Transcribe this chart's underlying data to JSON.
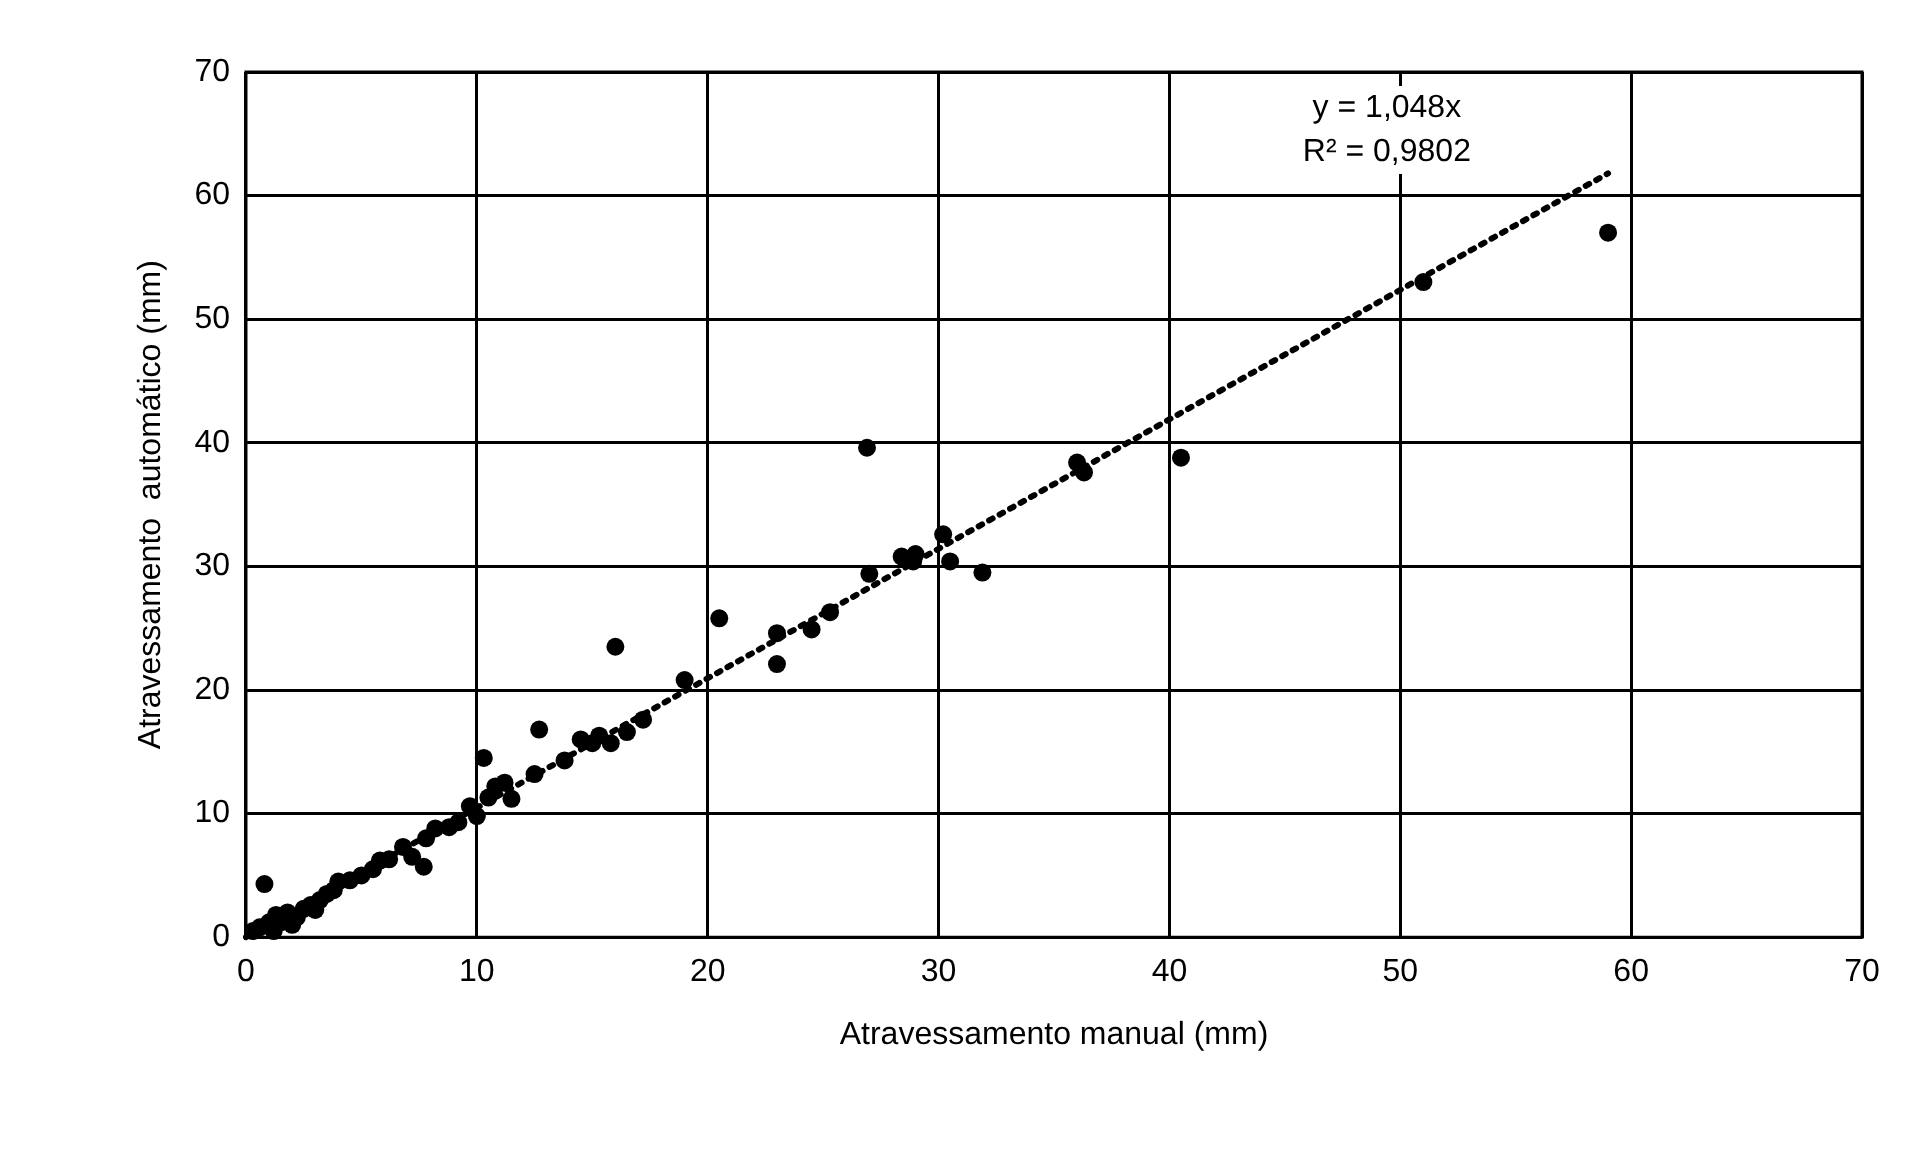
{
  "chart_data": {
    "type": "scatter",
    "xlabel": "Atravessamento manual (mm)",
    "ylabel": "Atravessamento  automático (mm)",
    "xlim": [
      0,
      70
    ],
    "ylim": [
      0,
      70
    ],
    "xticks": [
      0,
      10,
      20,
      30,
      40,
      50,
      60,
      70
    ],
    "yticks": [
      0,
      10,
      20,
      30,
      40,
      50,
      60,
      70
    ],
    "grid": true,
    "legend": false,
    "marker": "circle",
    "annotations": [
      "y = 1,048x",
      "R² = 0,9802"
    ],
    "series": [
      {
        "color": "#000000",
        "x": [
          0.3,
          0.6,
          0.8,
          1,
          1.2,
          1.3,
          1.5,
          1.8,
          2,
          2.2,
          2.5,
          2.8,
          3,
          3.2,
          3.5,
          3.8,
          4,
          4.5,
          5,
          5.5,
          5.8,
          6.2,
          6.8,
          7.2,
          7.7,
          7.8,
          8.2,
          8.8,
          9.2,
          9.7,
          10,
          10.3,
          10.5,
          10.8,
          11.2,
          11.5,
          12.5,
          12.7,
          13.8,
          14.5,
          15,
          15.3,
          15.8,
          16,
          16.5,
          17.2,
          19,
          20.5,
          23,
          23,
          24.5,
          25.3,
          26.9,
          27,
          28.4,
          28.9,
          29,
          30.2,
          30.5,
          31.9,
          36,
          36.3,
          40.5,
          51,
          59
        ],
        "values": [
          0.5,
          0.8,
          4.3,
          1.2,
          0.5,
          1.8,
          1.2,
          2,
          1,
          1.6,
          2.3,
          2.6,
          2.2,
          3,
          3.5,
          3.8,
          4.5,
          4.6,
          5,
          5.5,
          6.2,
          6.3,
          7.3,
          6.5,
          5.7,
          8,
          8.8,
          8.9,
          9.3,
          10.6,
          9.8,
          14.5,
          11.3,
          12.2,
          12.5,
          11.2,
          13.2,
          16.8,
          14.3,
          16,
          15.7,
          16.3,
          15.7,
          23.5,
          16.6,
          17.6,
          20.8,
          25.8,
          24.6,
          22.1,
          24.9,
          26.3,
          39.6,
          29.4,
          30.8,
          30.4,
          31,
          32.6,
          30.4,
          29.5,
          38.4,
          37.6,
          38.8,
          53,
          57
        ]
      },
      {
        "type": "line",
        "color": "#000000",
        "line_style": "dotted",
        "marker": "none",
        "x": [
          0,
          59
        ],
        "values": [
          0,
          61.8
        ]
      }
    ]
  }
}
